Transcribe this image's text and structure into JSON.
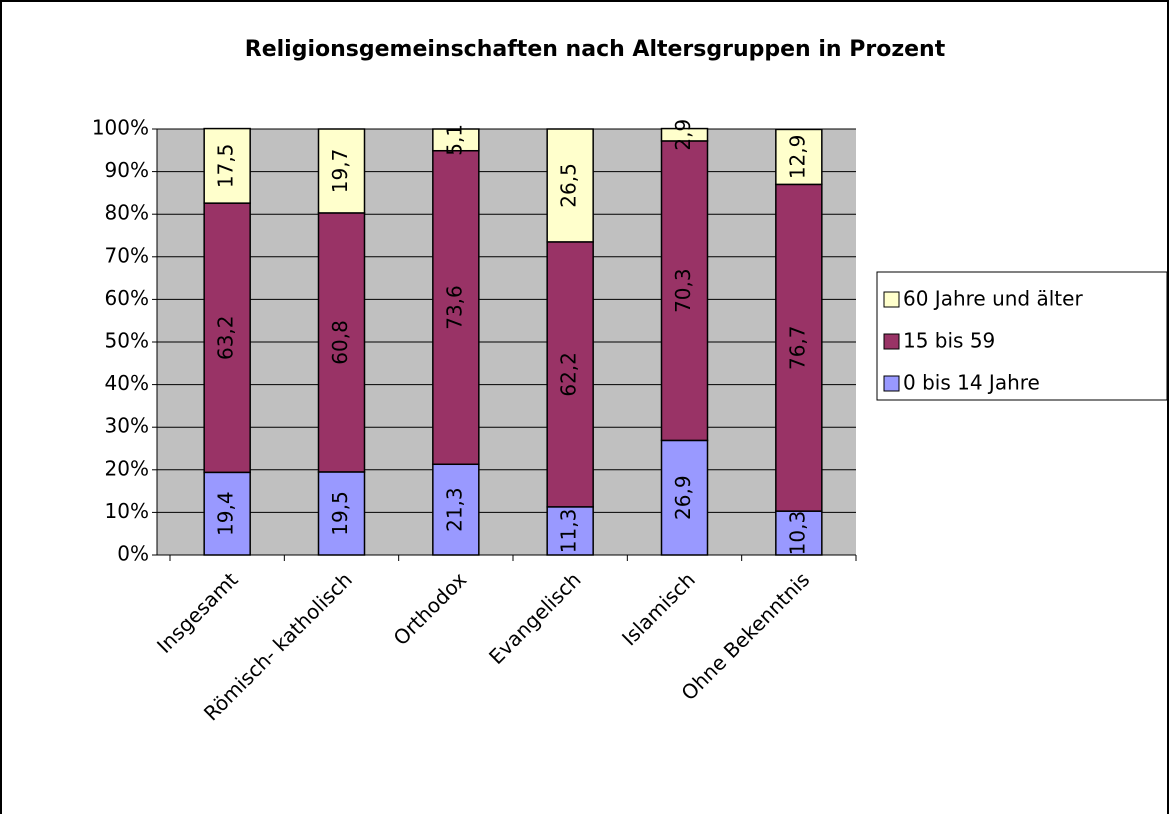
{
  "chart_data": {
    "type": "stacked_bar_percent",
    "title": "Religionsgemeinschaften nach Altersgruppen in Prozent",
    "categories": [
      "Insgesamt",
      "Römisch- katholisch",
      "Orthodox",
      "Evangelisch",
      "Islamisch",
      "Ohne Bekenntnis"
    ],
    "series": [
      {
        "name": "0 bis 14 Jahre",
        "color": "#9999ff",
        "values": [
          19.4,
          19.5,
          21.3,
          11.3,
          26.9,
          10.3
        ],
        "value_labels": [
          "19,4",
          "19,5",
          "21,3",
          "11,3",
          "26,9",
          "10,3"
        ]
      },
      {
        "name": "15 bis 59",
        "color": "#993366",
        "values": [
          63.2,
          60.8,
          73.6,
          62.2,
          70.3,
          76.7
        ],
        "value_labels": [
          "63,2",
          "60,8",
          "73,6",
          "62,2",
          "70,3",
          "76,7"
        ]
      },
      {
        "name": "60 Jahre und älter",
        "color": "#ffffcc",
        "values": [
          17.5,
          19.7,
          5.1,
          26.5,
          2.9,
          12.9
        ],
        "value_labels": [
          "17,5",
          "19,7",
          "5,1",
          "26,5",
          "2,9",
          "12,9"
        ]
      }
    ],
    "ylim": [
      0,
      100
    ],
    "yticks": [
      {
        "value": 0,
        "label": "0%"
      },
      {
        "value": 10,
        "label": "10%"
      },
      {
        "value": 20,
        "label": "20%"
      },
      {
        "value": 30,
        "label": "30%"
      },
      {
        "value": 40,
        "label": "40%"
      },
      {
        "value": 50,
        "label": "50%"
      },
      {
        "value": 60,
        "label": "60%"
      },
      {
        "value": 70,
        "label": "70%"
      },
      {
        "value": 80,
        "label": "80%"
      },
      {
        "value": 90,
        "label": "90%"
      },
      {
        "value": 100,
        "label": "100%"
      }
    ],
    "grid": true,
    "legend": "right"
  }
}
